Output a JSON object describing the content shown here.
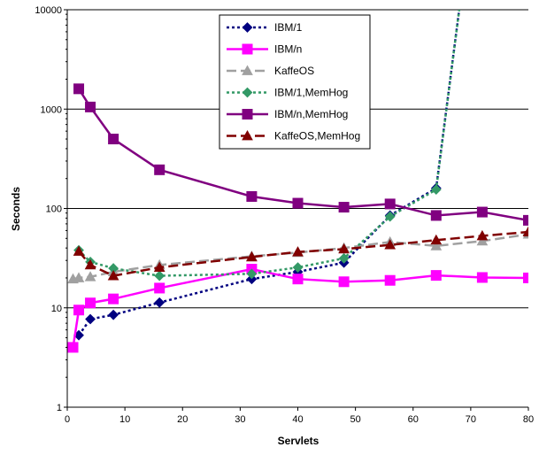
{
  "chart_data": {
    "type": "line",
    "xlabel": "Servlets",
    "ylabel": "Seconds",
    "xlim": [
      0,
      80
    ],
    "ylim": [
      1,
      10000
    ],
    "y_scale": "log",
    "x_ticks": [
      0,
      10,
      20,
      30,
      40,
      50,
      60,
      70,
      80
    ],
    "x_tick_labels": [
      "0",
      "10",
      "20",
      "30",
      "40",
      "50",
      "60",
      "70",
      "80"
    ],
    "y_ticks": [
      1,
      10,
      100,
      1000,
      10000
    ],
    "y_tick_labels": [
      "1",
      "10",
      "100",
      "1000",
      "10000"
    ],
    "grid": "horizontal",
    "legend_position": "top-center",
    "series": [
      {
        "name": "IBM/1",
        "color": "#000080",
        "dash": "dotted",
        "marker": "diamond",
        "x": [
          2,
          4,
          8,
          16,
          32,
          40,
          48,
          56,
          64,
          68
        ],
        "y": [
          5.3,
          7.7,
          8.5,
          11.3,
          19.5,
          23,
          28.5,
          85,
          160,
          10000
        ],
        "marked": [
          true,
          true,
          true,
          true,
          true,
          true,
          true,
          true,
          true,
          false
        ]
      },
      {
        "name": "IBM/n",
        "color": "#ff00ff",
        "dash": "solid",
        "marker": "square",
        "x": [
          1,
          2,
          4,
          8,
          16,
          32,
          40,
          48,
          56,
          64,
          72,
          80
        ],
        "y": [
          4,
          9.5,
          11.2,
          12.3,
          15.8,
          24.5,
          19.5,
          18.3,
          18.9,
          21.2,
          20.2,
          20
        ],
        "marked": [
          true,
          true,
          true,
          true,
          true,
          true,
          true,
          true,
          true,
          true,
          true,
          true
        ]
      },
      {
        "name": "KaffeOS",
        "color": "#a0a0a0",
        "dash": "longdash",
        "marker": "triangle",
        "x": [
          1,
          2,
          4,
          8,
          16,
          32,
          40,
          48,
          56,
          64,
          72,
          80
        ],
        "y": [
          19.5,
          20,
          20.5,
          23,
          27,
          33,
          36,
          40,
          46,
          42,
          47,
          55
        ],
        "marked": [
          true,
          true,
          true,
          true,
          true,
          true,
          true,
          true,
          true,
          true,
          true,
          true
        ]
      },
      {
        "name": "IBM/1,MemHog",
        "color": "#339966",
        "dash": "dotted",
        "marker": "diamond",
        "x": [
          2,
          4,
          8,
          16,
          32,
          40,
          48,
          56,
          64,
          68
        ],
        "y": [
          38,
          29,
          25,
          21,
          22,
          25.5,
          31.5,
          83,
          155,
          10000
        ],
        "marked": [
          true,
          true,
          true,
          true,
          true,
          true,
          true,
          true,
          true,
          false
        ]
      },
      {
        "name": "IBM/n,MemHog",
        "color": "#800080",
        "dash": "solid",
        "marker": "square",
        "x": [
          2,
          4,
          8,
          16,
          32,
          40,
          48,
          56,
          64,
          72,
          80
        ],
        "y": [
          1600,
          1050,
          500,
          245,
          132,
          113,
          103,
          111,
          85,
          92,
          76
        ],
        "marked": [
          true,
          true,
          true,
          true,
          true,
          true,
          true,
          true,
          true,
          true,
          true
        ]
      },
      {
        "name": "KaffeOS,MemHog",
        "color": "#800000",
        "dash": "longdash",
        "marker": "triangle",
        "x": [
          2,
          4,
          8,
          16,
          32,
          40,
          48,
          56,
          64,
          72,
          80
        ],
        "y": [
          37,
          27,
          21,
          25.5,
          32.5,
          36.5,
          39,
          43,
          48,
          53,
          58
        ],
        "marked": [
          true,
          true,
          true,
          true,
          true,
          true,
          true,
          true,
          true,
          true,
          true
        ]
      }
    ]
  }
}
